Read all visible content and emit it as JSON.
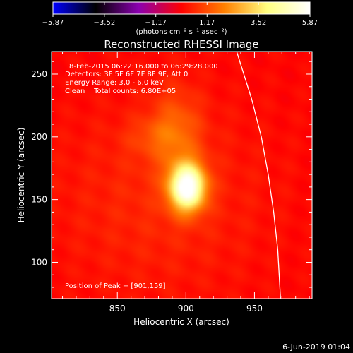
{
  "chart_data": {
    "type": "heatmap",
    "title": "Reconstructed RHESSI Image",
    "xlabel": "Heliocentric X (arcsec)",
    "ylabel": "Heliocentric Y (arcsec)",
    "xlim": [
      802,
      992
    ],
    "ylim": [
      71,
      268
    ],
    "xticks": [
      850,
      900,
      950
    ],
    "yticks": [
      100,
      150,
      200,
      250
    ],
    "grid": false,
    "colorbar": {
      "label": "(photons cm⁻² s⁻¹ asec⁻²)",
      "range": [
        -5.87,
        5.87
      ],
      "ticks": [
        "−5.87",
        "−3.52",
        "−1.17",
        "1.17",
        "3.52",
        "5.87"
      ],
      "ticks_num": [
        -5.87,
        -3.52,
        -1.17,
        1.17,
        3.52,
        5.87
      ],
      "colormap": [
        "#0000ff",
        "#000000",
        "#8b00b0",
        "#ff0000",
        "#ff8000",
        "#ffff80",
        "#ffffff"
      ]
    },
    "annotations": [
      "8-Feb-2015 06:22:16.000 to 06:29:28.000",
      "Detectors: 3F 5F 6F 7F 8F 9F, Att 0",
      "Energy Range: 3.0 - 6.0 keV",
      "Clean    Total counts: 6.80E+05",
      "Position of Peak = [901,159]"
    ],
    "peak": [
      901,
      159
    ],
    "sources": [
      {
        "x": 901,
        "y": 160,
        "sx": 9,
        "sy": 13,
        "amp": 5.87
      },
      {
        "x": 893,
        "y": 205,
        "sx": 13,
        "sy": 24,
        "amp": 1.2
      },
      {
        "x": 875,
        "y": 200,
        "sx": 14,
        "sy": 11,
        "amp": 0.6
      },
      {
        "x": 880,
        "y": 150,
        "sx": 55,
        "sy": 55,
        "amp": 0.55
      }
    ],
    "limb_points": [
      [
        937,
        268
      ],
      [
        948,
        230
      ],
      [
        955,
        200
      ],
      [
        960,
        170
      ],
      [
        964,
        140
      ],
      [
        967,
        110
      ],
      [
        969,
        71
      ]
    ]
  },
  "footer": {
    "date": "6-Jun-2019 01:04"
  }
}
